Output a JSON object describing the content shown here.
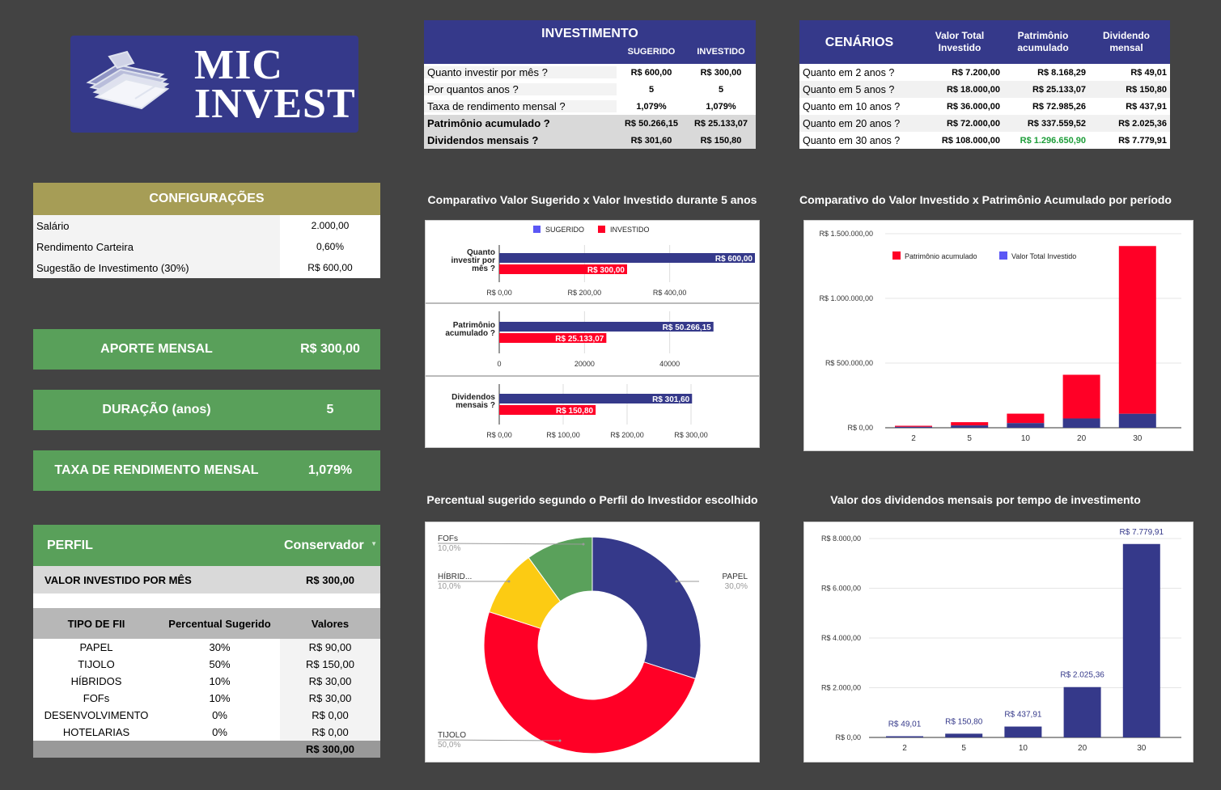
{
  "logo": {
    "line1": "MIC",
    "line2": "INVEST"
  },
  "investimento": {
    "title": "INVESTIMENTO",
    "col_sugerido": "SUGERIDO",
    "col_investido": "INVESTIDO",
    "rows": [
      {
        "label": "Quanto investir por mês ?",
        "sugerido": "R$ 600,00",
        "investido": "R$ 300,00"
      },
      {
        "label": "Por quantos anos ?",
        "sugerido": "5",
        "investido": "5"
      },
      {
        "label": "Taxa de rendimento mensal ?",
        "sugerido": "1,079%",
        "investido": "1,079%"
      },
      {
        "label": "Patrimônio acumulado ?",
        "sugerido": "R$ 50.266,15",
        "investido": "R$ 25.133,07"
      },
      {
        "label": "Dividendos mensais ?",
        "sugerido": "R$ 301,60",
        "investido": "R$ 150,80"
      }
    ]
  },
  "cenarios": {
    "title": "CENÁRIOS",
    "col_total": "Valor Total Investido",
    "col_patrimonio": "Patrimônio acumulado",
    "col_dividendo": "Dividendo mensal",
    "rows": [
      {
        "label": "Quanto em 2 anos ?",
        "total": "R$ 7.200,00",
        "patrimonio": "R$ 8.168,29",
        "dividendo": "R$ 49,01"
      },
      {
        "label": "Quanto em 5 anos ?",
        "total": "R$ 18.000,00",
        "patrimonio": "R$ 25.133,07",
        "dividendo": "R$ 150,80"
      },
      {
        "label": "Quanto em 10 anos ?",
        "total": "R$ 36.000,00",
        "patrimonio": "R$ 72.985,26",
        "dividendo": "R$ 437,91"
      },
      {
        "label": "Quanto em 20 anos ?",
        "total": "R$ 72.000,00",
        "patrimonio": "R$ 337.559,52",
        "dividendo": "R$ 2.025,36"
      },
      {
        "label": "Quanto em 30 anos ?",
        "total": "R$ 108.000,00",
        "patrimonio": "R$ 1.296.650,90",
        "dividendo": "R$ 7.779,91"
      }
    ],
    "highlight_color": "#1e9e3a"
  },
  "configuracoes": {
    "title": "CONFIGURAÇÕES",
    "rows": [
      {
        "label": "Salário",
        "value": "2.000,00"
      },
      {
        "label": "Rendimento Carteira",
        "value": "0,60%"
      },
      {
        "label": "Sugestão de Investimento (30%)",
        "value": "R$ 600,00"
      }
    ]
  },
  "aporte": {
    "label": "APORTE MENSAL",
    "value": "R$ 300,00"
  },
  "duracao": {
    "label": "DURAÇÃO (anos)",
    "value": "5"
  },
  "taxa": {
    "label": "TAXA DE RENDIMENTO MENSAL",
    "value": "1,079%"
  },
  "perfil": {
    "label": "PERFIL",
    "selected": "Conservador",
    "valor_label": "VALOR INVESTIDO POR MÊS",
    "valor": "R$ 300,00",
    "headers": [
      "TIPO DE FII",
      "Percentual Sugerido",
      "Valores"
    ],
    "rows": [
      {
        "tipo": "PAPEL",
        "pct": "30%",
        "valor": "R$ 90,00"
      },
      {
        "tipo": "TIJOLO",
        "pct": "50%",
        "valor": "R$ 150,00"
      },
      {
        "tipo": "HÍBRIDOS",
        "pct": "10%",
        "valor": "R$ 30,00"
      },
      {
        "tipo": "FOFs",
        "pct": "10%",
        "valor": "R$ 30,00"
      },
      {
        "tipo": "DESENVOLVIMENTO",
        "pct": "0%",
        "valor": "R$ 0,00"
      },
      {
        "tipo": "HOTELARIAS",
        "pct": "0%",
        "valor": "R$ 0,00"
      }
    ],
    "total": "R$ 300,00"
  },
  "colors": {
    "blue": "#35398a",
    "red": "#ff0026",
    "yellow": "#fccb13",
    "green": "#5aa15b",
    "legend_blue": "#5b57f5"
  },
  "chart_titles": {
    "comparativo": "Comparativo Valor Sugerido x Valor Investido durante 5 anos",
    "patrimonio": "Comparativo do Valor Investido x Patrimônio Acumulado por período",
    "percentual": "Percentual sugerido segundo o Perfil do Investidor escolhido",
    "dividendos": "Valor dos dividendos mensais por tempo de investimento"
  },
  "chart_data": [
    {
      "type": "bar",
      "orientation": "horizontal",
      "legend": [
        "SUGERIDO",
        "INVESTIDO"
      ],
      "legend_position": "top",
      "panels": [
        {
          "category": "Quanto investir por mês ?",
          "series": [
            {
              "name": "SUGERIDO",
              "value": 600,
              "label": "R$ 600,00"
            },
            {
              "name": "INVESTIDO",
              "value": 300,
              "label": "R$ 300,00"
            }
          ],
          "xlim": [
            0,
            600
          ],
          "ticks": [
            "R$ 0,00",
            "R$ 200,00",
            "R$ 400,00"
          ],
          "tick_values": [
            0,
            200,
            400
          ]
        },
        {
          "category": "Patrimônio acumulado ?",
          "series": [
            {
              "name": "SUGERIDO",
              "value": 50266.15,
              "label": "R$ 50.266,15"
            },
            {
              "name": "INVESTIDO",
              "value": 25133.07,
              "label": "R$ 25.133,07"
            }
          ],
          "xlim": [
            0,
            60000
          ],
          "ticks": [
            "0",
            "20000",
            "40000"
          ],
          "tick_values": [
            0,
            20000,
            40000
          ]
        },
        {
          "category": "Dividendos mensais ?",
          "series": [
            {
              "name": "SUGERIDO",
              "value": 301.6,
              "label": "R$ 301,60"
            },
            {
              "name": "INVESTIDO",
              "value": 150.8,
              "label": "R$ 150,80"
            }
          ],
          "xlim": [
            0,
            400
          ],
          "ticks": [
            "R$ 0,00",
            "R$ 100,00",
            "R$ 200,00",
            "R$ 300,00"
          ],
          "tick_values": [
            0,
            100,
            200,
            300
          ]
        }
      ]
    },
    {
      "type": "bar",
      "stacked": true,
      "categories": [
        "2",
        "5",
        "10",
        "20",
        "30"
      ],
      "series": [
        {
          "name": "Patrimônio acumulado",
          "values": [
            8168.29,
            25133.07,
            72985.26,
            337559.52,
            1296650.9
          ]
        },
        {
          "name": "Valor Total Investido",
          "values": [
            7200,
            18000,
            36000,
            72000,
            108000
          ]
        }
      ],
      "ylim": [
        0,
        1500000
      ],
      "yticks": [
        "R$ 0,00",
        "R$ 500.000,00",
        "R$ 1.000.000,00",
        "R$ 1.500.000,00"
      ],
      "ytick_values": [
        0,
        500000,
        1000000,
        1500000
      ],
      "legend_position": "top"
    },
    {
      "type": "pie",
      "donut": true,
      "slices": [
        {
          "name": "PAPEL",
          "value": 30,
          "label": "30,0%"
        },
        {
          "name": "TIJOLO",
          "value": 50,
          "label": "50,0%"
        },
        {
          "name": "HÍBRID...",
          "value": 10,
          "label": "10,0%"
        },
        {
          "name": "FOFs",
          "value": 10,
          "label": "10,0%"
        }
      ]
    },
    {
      "type": "bar",
      "categories": [
        "2",
        "5",
        "10",
        "20",
        "30"
      ],
      "values": [
        49.01,
        150.8,
        437.91,
        2025.36,
        7779.91
      ],
      "data_labels": [
        "R$ 49,01",
        "R$ 150,80",
        "R$ 437,91",
        "R$ 2.025,36",
        "R$ 7.779,91"
      ],
      "ylim": [
        0,
        8000
      ],
      "yticks": [
        "R$ 0,00",
        "R$ 2.000,00",
        "R$ 4.000,00",
        "R$ 6.000,00",
        "R$ 8.000,00"
      ],
      "ytick_values": [
        0,
        2000,
        4000,
        6000,
        8000
      ]
    }
  ]
}
